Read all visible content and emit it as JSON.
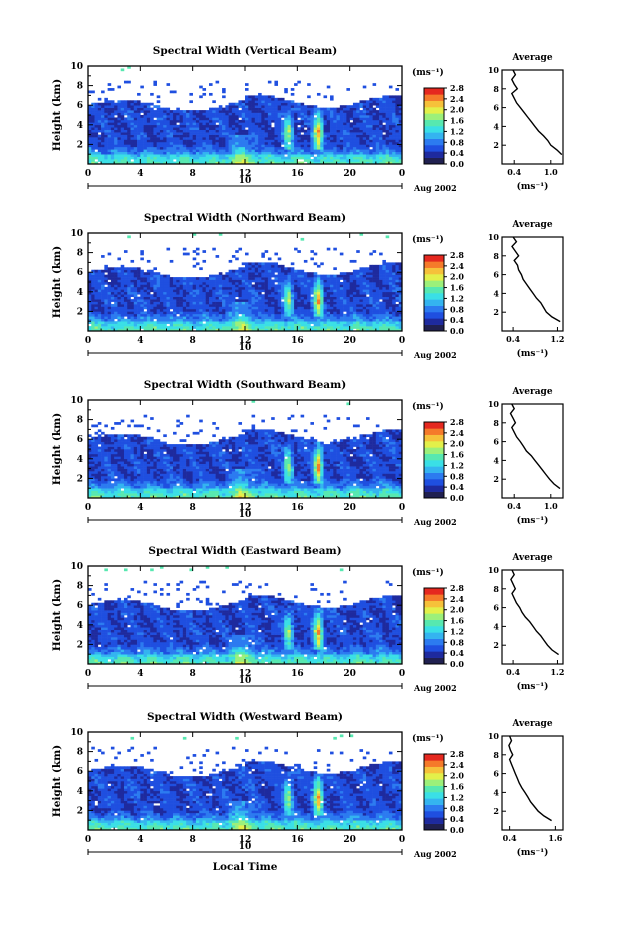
{
  "figure": {
    "xlabel": "Local Time",
    "date_label": "Aug 2002",
    "day_label": "10",
    "avg_title": "Average",
    "unit_label": "(ms⁻¹)"
  },
  "colors": {
    "scale": [
      "#202050",
      "#1e2a9e",
      "#1f4fe0",
      "#2c7bf0",
      "#34b4f0",
      "#3adfe6",
      "#57e8b0",
      "#9cf07a",
      "#e3f04a",
      "#f6c13a",
      "#f57a2a",
      "#e5281f"
    ]
  },
  "chart_data": [
    {
      "type": "heatmap",
      "title": "Spectral Width (Vertical Beam)",
      "xlabel": "",
      "ylabel": "Height (km)",
      "xlim": [
        0,
        24
      ],
      "ylim": [
        0,
        10
      ],
      "xticks": [
        "0",
        "4",
        "8",
        "12",
        "16",
        "20",
        "0"
      ],
      "yticks": [
        "2",
        "4",
        "6",
        "8",
        "10"
      ],
      "colorbar": {
        "label": "(ms⁻¹)",
        "range": [
          0,
          2.8
        ],
        "ticks": [
          "0.0",
          "0.4",
          "0.8",
          "1.2",
          "1.6",
          "2.0",
          "2.4",
          "2.8"
        ]
      },
      "profile": {
        "title": "Average",
        "xlabel": "(ms⁻¹)",
        "xticks": [
          "0.4",
          "1.0"
        ],
        "xlim": [
          0.2,
          1.2
        ],
        "yticks": [
          "2",
          "4",
          "6",
          "8",
          "10"
        ],
        "height": [
          1,
          1.5,
          2,
          2.5,
          3,
          3.5,
          4,
          4.5,
          5,
          5.5,
          6,
          6.5,
          7,
          7.5,
          8,
          8.5,
          9,
          9.5,
          10
        ],
        "value": [
          1.18,
          1.1,
          1.0,
          0.95,
          0.88,
          0.8,
          0.74,
          0.68,
          0.62,
          0.56,
          0.5,
          0.44,
          0.4,
          0.36,
          0.45,
          0.4,
          0.36,
          0.42,
          0.38
        ]
      }
    },
    {
      "type": "heatmap",
      "title": "Spectral Width (Northward Beam)",
      "xlabel": "",
      "ylabel": "Height (km)",
      "xlim": [
        0,
        24
      ],
      "ylim": [
        0,
        10
      ],
      "xticks": [
        "0",
        "4",
        "8",
        "12",
        "16",
        "20",
        "0"
      ],
      "yticks": [
        "2",
        "4",
        "6",
        "8",
        "10"
      ],
      "colorbar": {
        "label": "(ms⁻¹)",
        "range": [
          0,
          2.8
        ],
        "ticks": [
          "0.0",
          "0.4",
          "0.8",
          "1.2",
          "1.6",
          "2.0",
          "2.4",
          "2.8"
        ]
      },
      "profile": {
        "title": "Average",
        "xlabel": "(ms⁻¹)",
        "xticks": [
          "0.4",
          "1.2"
        ],
        "xlim": [
          0.2,
          1.3
        ],
        "yticks": [
          "2",
          "4",
          "6",
          "8",
          "10"
        ],
        "height": [
          1,
          1.5,
          2,
          2.5,
          3,
          3.5,
          4,
          4.5,
          5,
          5.5,
          6,
          6.5,
          7,
          7.5,
          8,
          8.5,
          9,
          9.5,
          10
        ],
        "value": [
          1.25,
          1.1,
          1.0,
          0.95,
          0.9,
          0.82,
          0.76,
          0.7,
          0.64,
          0.58,
          0.55,
          0.5,
          0.48,
          0.42,
          0.5,
          0.44,
          0.38,
          0.46,
          0.4
        ]
      }
    },
    {
      "type": "heatmap",
      "title": "Spectral Width (Southward Beam)",
      "xlabel": "",
      "ylabel": "Height (km)",
      "xlim": [
        0,
        24
      ],
      "ylim": [
        0,
        10
      ],
      "xticks": [
        "0",
        "4",
        "8",
        "12",
        "16",
        "20",
        "0"
      ],
      "yticks": [
        "2",
        "4",
        "6",
        "8",
        "10"
      ],
      "colorbar": {
        "label": "(ms⁻¹)",
        "range": [
          0,
          2.8
        ],
        "ticks": [
          "0.0",
          "0.4",
          "0.8",
          "1.2",
          "1.6",
          "2.0",
          "2.4",
          "2.8"
        ]
      },
      "profile": {
        "title": "Average",
        "xlabel": "(ms⁻¹)",
        "xticks": [
          "0.4",
          "1.0"
        ],
        "xlim": [
          0.2,
          1.2
        ],
        "yticks": [
          "2",
          "4",
          "6",
          "8",
          "10"
        ],
        "height": [
          1,
          1.5,
          2,
          2.5,
          3,
          3.5,
          4,
          4.5,
          5,
          5.5,
          6,
          6.5,
          7,
          7.5,
          8,
          8.5,
          9,
          9.5,
          10
        ],
        "value": [
          1.15,
          1.05,
          0.98,
          0.92,
          0.86,
          0.8,
          0.74,
          0.68,
          0.6,
          0.55,
          0.5,
          0.44,
          0.4,
          0.36,
          0.42,
          0.38,
          0.34,
          0.4,
          0.36
        ]
      }
    },
    {
      "type": "heatmap",
      "title": "Spectral Width (Eastward Beam)",
      "xlabel": "",
      "ylabel": "Height (km)",
      "xlim": [
        0,
        24
      ],
      "ylim": [
        0,
        10
      ],
      "xticks": [
        "0",
        "4",
        "8",
        "12",
        "16",
        "20",
        "0"
      ],
      "yticks": [
        "2",
        "4",
        "6",
        "8",
        "10"
      ],
      "colorbar": {
        "label": "(ms⁻¹)",
        "range": [
          0,
          2.8
        ],
        "ticks": [
          "0.0",
          "0.4",
          "0.8",
          "1.2",
          "1.6",
          "2.0",
          "2.4",
          "2.8"
        ]
      },
      "profile": {
        "title": "Average",
        "xlabel": "(ms⁻¹)",
        "xticks": [
          "0.4",
          "1.2"
        ],
        "xlim": [
          0.2,
          1.3
        ],
        "yticks": [
          "2",
          "4",
          "6",
          "8",
          "10"
        ],
        "height": [
          1,
          1.5,
          2,
          2.5,
          3,
          3.5,
          4,
          4.5,
          5,
          5.5,
          6,
          6.5,
          7,
          7.5,
          8,
          8.5,
          9,
          9.5,
          10
        ],
        "value": [
          1.22,
          1.1,
          1.02,
          0.96,
          0.9,
          0.82,
          0.76,
          0.7,
          0.62,
          0.56,
          0.52,
          0.46,
          0.42,
          0.38,
          0.44,
          0.4,
          0.36,
          0.42,
          0.38
        ]
      }
    },
    {
      "type": "heatmap",
      "title": "Spectral Width (Westward Beam)",
      "xlabel": "Local Time",
      "ylabel": "Height (km)",
      "xlim": [
        0,
        24
      ],
      "ylim": [
        0,
        10
      ],
      "xticks": [
        "0",
        "4",
        "8",
        "12",
        "16",
        "20",
        "0"
      ],
      "yticks": [
        "2",
        "4",
        "6",
        "8",
        "10"
      ],
      "colorbar": {
        "label": "(ms⁻¹)",
        "range": [
          0,
          2.8
        ],
        "ticks": [
          "0.0",
          "0.4",
          "0.8",
          "1.2",
          "1.6",
          "2.0",
          "2.4",
          "2.8"
        ]
      },
      "profile": {
        "title": "Average",
        "xlabel": "(ms⁻¹)",
        "xticks": [
          "0.4",
          "1.6"
        ],
        "xlim": [
          0.2,
          1.8
        ],
        "yticks": [
          "2",
          "4",
          "6",
          "8",
          "10"
        ],
        "height": [
          1,
          1.5,
          2,
          2.5,
          3,
          3.5,
          4,
          4.5,
          5,
          5.5,
          6,
          6.5,
          7,
          7.5,
          8,
          8.5,
          9,
          9.5,
          10
        ],
        "value": [
          1.5,
          1.3,
          1.15,
          1.05,
          0.95,
          0.88,
          0.8,
          0.72,
          0.65,
          0.6,
          0.55,
          0.5,
          0.45,
          0.4,
          0.48,
          0.42,
          0.38,
          0.45,
          0.4
        ]
      }
    }
  ]
}
